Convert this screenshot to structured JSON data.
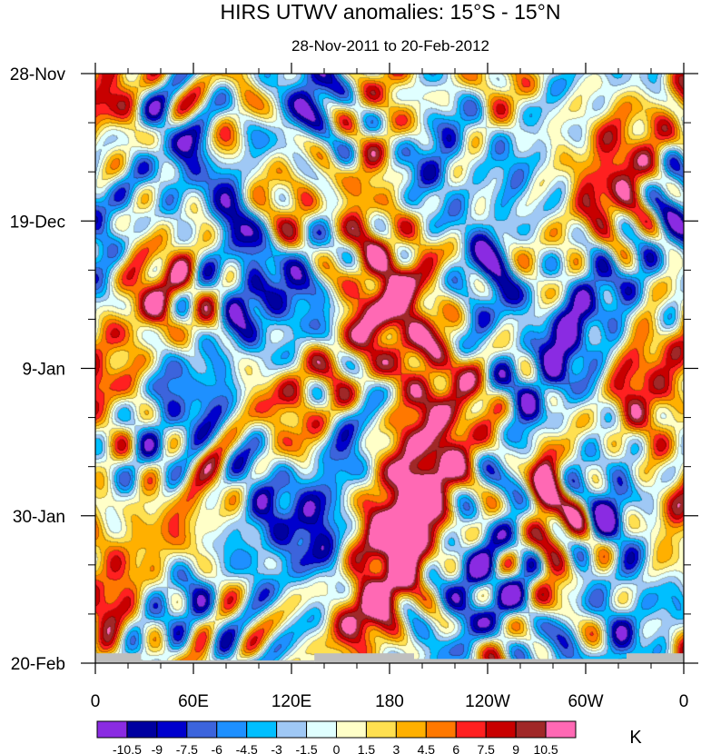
{
  "chart_data": {
    "type": "heatmap",
    "title": "HIRS UTWV anomalies: 15°S - 15°N",
    "subtitle": "28-Nov-2011 to 20-Feb-2012",
    "xlabel": "",
    "ylabel": "",
    "x_ticks": [
      {
        "label": "0",
        "lon": 0
      },
      {
        "label": "60E",
        "lon": 60
      },
      {
        "label": "120E",
        "lon": 120
      },
      {
        "label": "180",
        "lon": 180
      },
      {
        "label": "120W",
        "lon": 240
      },
      {
        "label": "60W",
        "lon": 300
      },
      {
        "label": "0",
        "lon": 360
      }
    ],
    "xlim": [
      0,
      360
    ],
    "y_ticks": [
      {
        "label": "28-Nov",
        "day": 0
      },
      {
        "label": "19-Dec",
        "day": 21
      },
      {
        "label": "9-Jan",
        "day": 42
      },
      {
        "label": "30-Jan",
        "day": 63
      },
      {
        "label": "20-Feb",
        "day": 84
      }
    ],
    "ylim": [
      0,
      84
    ],
    "colorbar": {
      "unit": "K",
      "levels": [
        "-10.5",
        "-9",
        "-7.5",
        "-6",
        "-4.5",
        "-3",
        "-1.5",
        "0",
        "1.5",
        "3",
        "4.5",
        "6",
        "7.5",
        "9",
        "10.5"
      ],
      "colors": [
        "#8a2be2",
        "#0000a0",
        "#0000cd",
        "#3c64dc",
        "#1e90ff",
        "#00bfff",
        "#9fc8f5",
        "#e0ffff",
        "#ffffc8",
        "#ffe050",
        "#ffb000",
        "#ff7800",
        "#ff2020",
        "#c80000",
        "#a02828",
        "#ff69b4"
      ]
    },
    "missing_color": "#bebebe",
    "missing_segments": [
      {
        "lon_start": 0,
        "lon_end": 28,
        "day_start": 82.6
      },
      {
        "lon_start": 28,
        "lon_end": 134,
        "day_start": 83.6
      },
      {
        "lon_start": 134,
        "lon_end": 195,
        "day_start": 82.6
      },
      {
        "lon_start": 195,
        "lon_end": 325,
        "day_start": 83.4
      },
      {
        "lon_start": 325,
        "lon_end": 360,
        "day_start": 82.6
      }
    ],
    "anomaly_features": [
      {
        "lon": 195,
        "day": 62,
        "value": 11.5,
        "slon": 22,
        "sday": 8
      },
      {
        "lon": 165,
        "day": 20,
        "value": 10,
        "slon": 18,
        "sday": 7
      },
      {
        "lon": 200,
        "day": 33,
        "value": 7,
        "slon": 16,
        "sday": 6
      },
      {
        "lon": 190,
        "day": 48,
        "value": 7,
        "slon": 18,
        "sday": 7
      },
      {
        "lon": 168,
        "day": 77,
        "value": 7,
        "slon": 18,
        "sday": 4
      },
      {
        "lon": 275,
        "day": 59,
        "value": 8,
        "slon": 6,
        "sday": 9
      },
      {
        "lon": 30,
        "day": 29,
        "value": 6.5,
        "slon": 14,
        "sday": 6
      },
      {
        "lon": 35,
        "day": 67,
        "value": 6,
        "slon": 14,
        "sday": 6
      },
      {
        "lon": 350,
        "day": 50,
        "value": 5,
        "slon": 12,
        "sday": 10
      },
      {
        "lon": 10,
        "day": 75,
        "value": 5,
        "slon": 10,
        "sday": 7
      },
      {
        "lon": 330,
        "day": 45,
        "value": 5,
        "slon": 10,
        "sday": 6
      },
      {
        "lon": 100,
        "day": 43,
        "value": 5,
        "slon": 14,
        "sday": 5
      },
      {
        "lon": 320,
        "day": 5,
        "value": 6,
        "slon": 16,
        "sday": 6
      },
      {
        "lon": 15,
        "day": 5,
        "value": 5,
        "slon": 12,
        "sday": 5
      },
      {
        "lon": 90,
        "day": 25,
        "value": -9,
        "slon": 12,
        "sday": 7
      },
      {
        "lon": 100,
        "day": 59,
        "value": -9,
        "slon": 14,
        "sday": 8
      },
      {
        "lon": 245,
        "day": 30,
        "value": -9,
        "slon": 12,
        "sday": 6
      },
      {
        "lon": 140,
        "day": 16,
        "value": -6,
        "slon": 14,
        "sday": 10
      },
      {
        "lon": 210,
        "day": 12,
        "value": -6,
        "slon": 12,
        "sday": 6
      },
      {
        "lon": 325,
        "day": 75,
        "value": -7,
        "slon": 14,
        "sday": 6
      },
      {
        "lon": 140,
        "day": 70,
        "value": -6,
        "slon": 12,
        "sday": 8
      },
      {
        "lon": 285,
        "day": 35,
        "value": -5,
        "slon": 14,
        "sday": 10
      },
      {
        "lon": 40,
        "day": 47,
        "value": -5,
        "slon": 14,
        "sday": 8
      },
      {
        "lon": 260,
        "day": 65,
        "value": -5,
        "slon": 10,
        "sday": 10
      },
      {
        "lon": 65,
        "day": 10,
        "value": -5,
        "slon": 14,
        "sday": 6
      },
      {
        "lon": 230,
        "day": 78,
        "value": -6,
        "slon": 14,
        "sday": 6
      },
      {
        "lon": 310,
        "day": 55,
        "value": -5,
        "slon": 10,
        "sday": 8
      },
      {
        "lon": 355,
        "day": 20,
        "value": -4,
        "slon": 10,
        "sday": 8
      }
    ]
  }
}
